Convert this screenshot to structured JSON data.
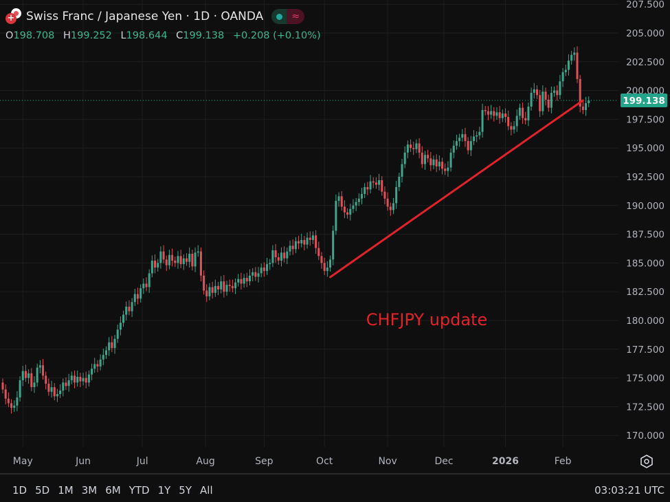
{
  "header": {
    "title": "Swiss Franc / Japanese Yen · 1D · OANDA",
    "ohlc": {
      "o_label": "O",
      "o": "198.708",
      "h_label": "H",
      "h": "199.252",
      "l_label": "L",
      "l": "198.644",
      "c_label": "C",
      "c": "199.138",
      "change": "+0.208 (+0.10%)"
    },
    "icons": [
      "swiss-flag-icon",
      "japan-flag-icon",
      "market-open-dot-icon",
      "wave-icon"
    ]
  },
  "range_buttons": [
    "1D",
    "5D",
    "1M",
    "3M",
    "6M",
    "YTD",
    "1Y",
    "5Y",
    "All"
  ],
  "clock": "03:03:21 UTC",
  "colors": {
    "up": "#3fa58c",
    "down": "#e0525a",
    "background": "#0f0f0f",
    "grid": "#1e1e1e",
    "trendline": "#e0232b",
    "price_label": "#22a38a"
  },
  "chart_data": {
    "type": "candlestick",
    "symbol": "CHFJPY",
    "interval": "1D",
    "ylim": [
      169,
      207.7
    ],
    "y_ticks": [
      "207.500",
      "205.000",
      "202.500",
      "200.000",
      "197.500",
      "195.000",
      "192.500",
      "190.000",
      "187.500",
      "185.000",
      "182.500",
      "180.000",
      "177.500",
      "175.000",
      "172.500",
      "170.000"
    ],
    "x_ticks": [
      {
        "label": "May",
        "index": 7
      },
      {
        "label": "Jun",
        "index": 28
      },
      {
        "label": "Jul",
        "index": 48.6
      },
      {
        "label": "Aug",
        "index": 70.6
      },
      {
        "label": "Sep",
        "index": 91
      },
      {
        "label": "Oct",
        "index": 112
      },
      {
        "label": "Nov",
        "index": 134
      },
      {
        "label": "Dec",
        "index": 153.6
      },
      {
        "label": "2026",
        "index": 175,
        "bold": true
      },
      {
        "label": "Feb",
        "index": 195
      }
    ],
    "grid": true,
    "last_price": "199.138",
    "closes": [
      174.0,
      173.2,
      172.8,
      172.4,
      172.6,
      173.3,
      174.8,
      175.6,
      175.0,
      175.4,
      174.2,
      174.6,
      175.9,
      176.1,
      175.2,
      174.5,
      173.8,
      174.2,
      173.4,
      173.6,
      173.9,
      174.6,
      174.3,
      174.8,
      175.2,
      174.6,
      175.1,
      174.7,
      175.0,
      174.6,
      175.3,
      175.8,
      176.2,
      176.0,
      176.6,
      177.0,
      177.4,
      178.1,
      177.6,
      178.4,
      179.2,
      179.8,
      180.5,
      181.2,
      180.8,
      181.6,
      182.3,
      181.9,
      182.8,
      183.2,
      182.9,
      184.1,
      185.2,
      184.6,
      185.0,
      186.0,
      185.3,
      184.8,
      185.7,
      185.2,
      185.0,
      185.6,
      184.9,
      185.4,
      185.1,
      185.8,
      184.7,
      185.9,
      186.0,
      183.9,
      182.6,
      182.1,
      182.9,
      182.4,
      183.0,
      182.7,
      183.4,
      182.5,
      183.1,
      183.0,
      182.8,
      183.3,
      183.6,
      183.2,
      183.7,
      183.4,
      183.9,
      184.2,
      183.8,
      184.1,
      184.6,
      184.3,
      184.9,
      185.0,
      186.1,
      185.5,
      185.2,
      185.9,
      185.4,
      186.0,
      186.5,
      186.2,
      186.9,
      186.7,
      187.0,
      186.6,
      187.2,
      187.0,
      187.4,
      186.3,
      185.6,
      185.0,
      184.3,
      184.6,
      185.3,
      187.8,
      190.4,
      190.8,
      189.9,
      189.4,
      189.2,
      189.7,
      190.0,
      190.3,
      190.6,
      191.0,
      191.6,
      191.4,
      192.1,
      192.0,
      191.8,
      192.2,
      191.2,
      190.6,
      189.9,
      189.6,
      190.2,
      191.6,
      192.5,
      193.6,
      194.6,
      195.3,
      195.0,
      194.9,
      195.4,
      194.6,
      193.6,
      194.4,
      194.1,
      193.5,
      194.0,
      193.4,
      193.8,
      193.2,
      193.0,
      193.3,
      194.6,
      195.2,
      195.6,
      195.9,
      196.2,
      195.6,
      194.8,
      195.6,
      196.0,
      196.1,
      196.4,
      198.3,
      198.2,
      197.9,
      198.2,
      197.8,
      198.1,
      197.6,
      198.0,
      197.7,
      196.9,
      196.6,
      196.9,
      197.8,
      198.5,
      197.6,
      197.4,
      198.6,
      199.8,
      200.1,
      199.6,
      198.2,
      199.9,
      199.2,
      198.5,
      199.8,
      200.0,
      199.6,
      200.8,
      201.6,
      201.8,
      202.6,
      203.1,
      203.3,
      201.0,
      198.6,
      198.3,
      198.9,
      199.138
    ],
    "first_open": 174.6,
    "trendline": {
      "start": {
        "index": 114,
        "price": 183.77
      },
      "end": {
        "index": 202,
        "price": 199.14
      }
    },
    "annotation": {
      "text": "CHFJPY update",
      "index": 126.5,
      "price": 179.95
    }
  }
}
